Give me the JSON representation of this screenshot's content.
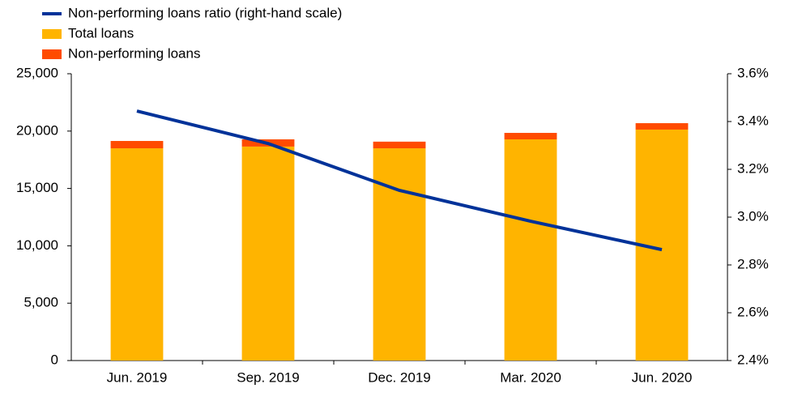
{
  "chart_data": {
    "type": "bar-line",
    "categories": [
      "Jun. 2019",
      "Sep. 2019",
      "Dec. 2019",
      "Mar. 2020",
      "Jun. 2020"
    ],
    "series": [
      {
        "name": "Non-performing loans ratio (right-hand scale)",
        "type": "line",
        "axis": "y2",
        "color": "#003299",
        "values": [
          3.444,
          3.308,
          3.112,
          2.983,
          2.864
        ]
      },
      {
        "name": "Total loans",
        "type": "bar",
        "color": "#ffb400",
        "values": [
          18500,
          18650,
          18500,
          19280,
          20130
        ]
      },
      {
        "name": "Non-performing loans",
        "type": "bar",
        "color": "#ff4b00",
        "values": [
          640,
          630,
          580,
          565,
          560
        ]
      }
    ],
    "ylim": [
      0,
      25000
    ],
    "yticks": [
      0,
      {
        "value": 5000,
        "label": "5,000"
      },
      {
        "value": 10000,
        "label": "10,000"
      },
      {
        "value": 15000,
        "label": "15,000"
      },
      {
        "value": 20000,
        "label": "20,000"
      },
      {
        "value": 25000,
        "label": "25,000"
      }
    ],
    "y2lim": [
      2.4,
      3.6
    ],
    "y2ticks": [
      {
        "value": 2.4,
        "label": "2.4%"
      },
      {
        "value": 2.6,
        "label": "2.6%"
      },
      {
        "value": 2.8,
        "label": "2.8%"
      },
      {
        "value": 3.0,
        "label": "3.0%"
      },
      {
        "value": 3.2,
        "label": "3.2%"
      },
      {
        "value": 3.4,
        "label": "3.4%"
      },
      {
        "value": 3.6,
        "label": "3.6%"
      }
    ],
    "grid": false,
    "legend": "top-left"
  }
}
